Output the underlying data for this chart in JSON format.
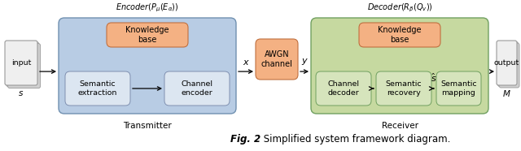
{
  "fig_width": 6.4,
  "fig_height": 1.86,
  "dpi": 100,
  "bg_color": "#ffffff",
  "colors": {
    "transmitter_bg": "#b8cce4",
    "receiver_bg": "#c6d9a0",
    "knowledge_box": "#f4b183",
    "inner_box_tx": "#dce6f1",
    "inner_box_rx": "#d6e4bc",
    "awgn_box": "#f4b183",
    "input_box": "#efefef",
    "output_box": "#efefef",
    "tx_border": "#7090b0",
    "rx_border": "#70a060",
    "kb_border": "#c07040",
    "inner_tx_border": "#8090b0",
    "inner_rx_border": "#70a060",
    "io_border": "#999999"
  },
  "encoder_label": "$\\mathit{Encoder}(P_{\\mu}(E_{\\alpha}))$",
  "decoder_label": "$\\mathit{Decoder}(R_{\\beta}(Q_{v}))$",
  "transmitter_label": "Transmitter",
  "receiver_label": "Receiver",
  "input_label": "input",
  "input_sublabel": "$s$",
  "output_label": "output",
  "output_sublabel": "$M$",
  "sem_extract_label": "Semantic\nextraction",
  "channel_enc_label": "Channel\nencoder",
  "knowledge_tx_label": "Knowledge\nbase",
  "awgn_label": "AWGN\nchannel",
  "channel_dec_label": "Channel\ndecoder",
  "sem_recovery_label": "Semantic\nrecovery",
  "sem_mapping_label": "Semantic\nmapping",
  "knowledge_rx_label": "Knowledge\nbase",
  "x_label": "$x$",
  "y_label": "$y$",
  "s_hat_label": "$\\hat{s}$",
  "caption_bold": "Fig. 2",
  "caption_normal": " Simplified system framework diagram."
}
